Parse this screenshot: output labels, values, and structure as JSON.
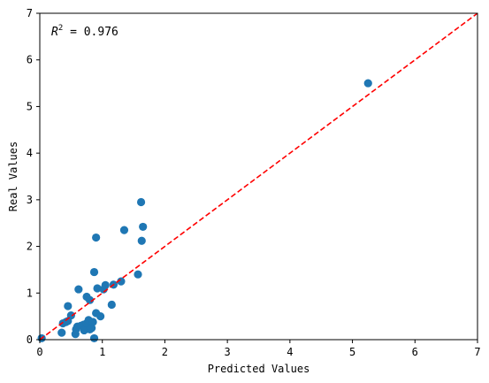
{
  "chart_data": {
    "type": "scatter",
    "xlabel": "Predicted Values",
    "ylabel": "Real Values",
    "xlim": [
      0,
      7
    ],
    "ylim": [
      0,
      7
    ],
    "xticks": [
      "0",
      "1",
      "2",
      "3",
      "4",
      "5",
      "6",
      "7"
    ],
    "yticks": [
      "0",
      "1",
      "2",
      "3",
      "4",
      "5",
      "6",
      "7"
    ],
    "grid": false,
    "annotation": {
      "base": "R",
      "sup": "2",
      "text": " = 0.976"
    },
    "reference_line": {
      "from": [
        0,
        0
      ],
      "to": [
        7,
        7
      ],
      "color": "#ff0000",
      "style": "dashed"
    },
    "marker_color": "#1f77b4",
    "points": [
      {
        "x": 0.03,
        "y": 0.03
      },
      {
        "x": 0.35,
        "y": 0.15
      },
      {
        "x": 0.37,
        "y": 0.35
      },
      {
        "x": 0.42,
        "y": 0.38
      },
      {
        "x": 0.45,
        "y": 0.4
      },
      {
        "x": 0.45,
        "y": 0.72
      },
      {
        "x": 0.5,
        "y": 0.52
      },
      {
        "x": 0.57,
        "y": 0.12
      },
      {
        "x": 0.58,
        "y": 0.22
      },
      {
        "x": 0.6,
        "y": 0.28
      },
      {
        "x": 0.62,
        "y": 1.08
      },
      {
        "x": 0.66,
        "y": 0.3
      },
      {
        "x": 0.7,
        "y": 0.32
      },
      {
        "x": 0.71,
        "y": 0.2
      },
      {
        "x": 0.75,
        "y": 0.35
      },
      {
        "x": 0.75,
        "y": 0.92
      },
      {
        "x": 0.78,
        "y": 0.42
      },
      {
        "x": 0.8,
        "y": 0.22
      },
      {
        "x": 0.8,
        "y": 0.85
      },
      {
        "x": 0.83,
        "y": 0.25
      },
      {
        "x": 0.85,
        "y": 0.38
      },
      {
        "x": 0.87,
        "y": 1.45
      },
      {
        "x": 0.87,
        "y": 0.03
      },
      {
        "x": 0.9,
        "y": 0.57
      },
      {
        "x": 0.9,
        "y": 2.19
      },
      {
        "x": 0.92,
        "y": 1.1
      },
      {
        "x": 0.97,
        "y": 0.5
      },
      {
        "x": 1.02,
        "y": 1.08
      },
      {
        "x": 1.05,
        "y": 1.17
      },
      {
        "x": 1.15,
        "y": 0.75
      },
      {
        "x": 1.18,
        "y": 1.18
      },
      {
        "x": 1.3,
        "y": 1.25
      },
      {
        "x": 1.35,
        "y": 2.35
      },
      {
        "x": 1.57,
        "y": 1.4
      },
      {
        "x": 1.62,
        "y": 2.95
      },
      {
        "x": 1.63,
        "y": 2.12
      },
      {
        "x": 1.65,
        "y": 2.42
      },
      {
        "x": 5.25,
        "y": 5.5
      }
    ]
  }
}
